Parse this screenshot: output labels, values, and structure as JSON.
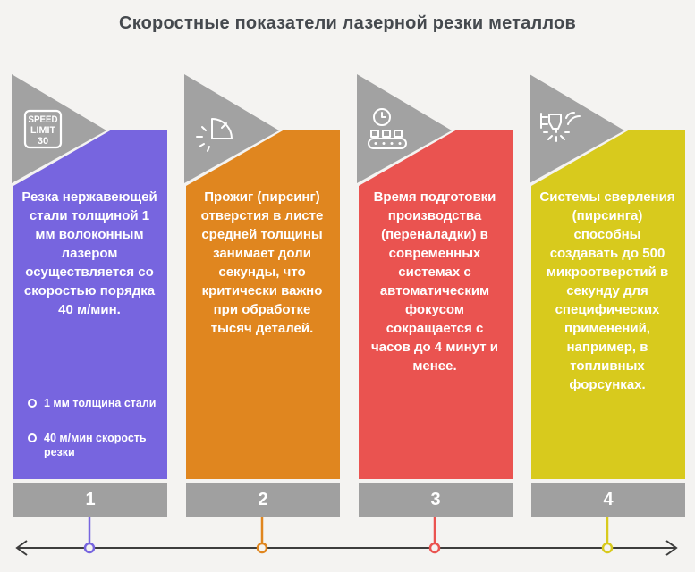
{
  "title": "Скоростные показатели лазерной резки металлов",
  "palette": {
    "background": "#F4F3F1",
    "header_gray": "#A2A2A2",
    "footer_gray": "#A0A0A0",
    "title_text": "#45494E",
    "card_text": "#FFFFFF",
    "axis": "#3D3D3D"
  },
  "cards": [
    {
      "number": "1",
      "icon": "speed-limit-30-sign-icon",
      "color": "#7765DF",
      "text": "Резка нержавеющей стали толщиной 1 мм волоконным лазером осуществляется со скоростью порядка 40 м/мин.",
      "bullets": [
        "1 мм толщина стали",
        "40 м/мин скорость резки"
      ]
    },
    {
      "number": "2",
      "icon": "pie-timer-icon",
      "color": "#E0861F",
      "text": "Прожиг (пирсинг) отверстия в листе средней толщины занимает доли секунды, что критически важно при обработке тысяч деталей.",
      "bullets": []
    },
    {
      "number": "3",
      "icon": "conveyor-clock-icon",
      "color": "#EA5350",
      "text": "Время подготовки производства (переналадки) в современных системах с автоматическим фокусом сокращается с часов до 4 минут и менее.",
      "bullets": []
    },
    {
      "number": "4",
      "icon": "laser-drilling-head-icon",
      "color": "#D8CA1D",
      "text": "Системы сверления (пирсинга) способны создавать до 500 микроотверстий в секунду для специфических применений, например, в топливных форсунках.",
      "bullets": []
    }
  ],
  "timeline": {
    "markers": [
      "1",
      "2",
      "3",
      "4"
    ],
    "arrow_ends": "both"
  }
}
